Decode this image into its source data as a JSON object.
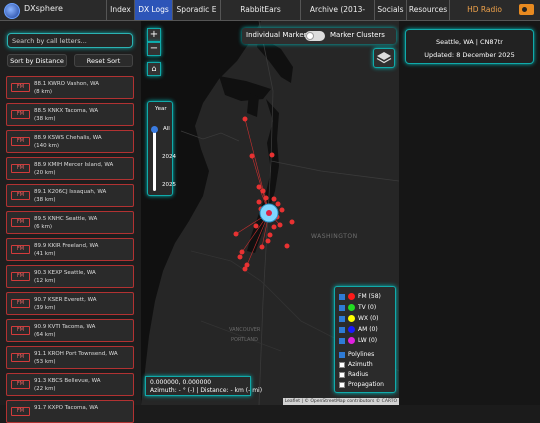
{
  "brand": "DXsphere",
  "nav": [
    {
      "label": "Index"
    },
    {
      "label": "DX Logs"
    },
    {
      "label": "Sporadic E"
    },
    {
      "label": "RabbitEars Autologger"
    },
    {
      "label": "Archive (2013-2023)"
    },
    {
      "label": "Socials"
    },
    {
      "label": "Resources"
    },
    {
      "label": "HD Radio Directory"
    }
  ],
  "search": {
    "placeholder": "Search by call letters..."
  },
  "sort_distance_label": "Sort by Distance",
  "reset_sort_label": "Reset Sort",
  "stations": [
    {
      "badge": "FM",
      "line1": "88.1 KWRO Vashon, WA",
      "line2": "(8 km)"
    },
    {
      "badge": "FM",
      "line1": "88.5 KNKX Tacoma, WA",
      "line2": "(38 km)"
    },
    {
      "badge": "FM",
      "line1": "88.9 KSWS Chehalis, WA",
      "line2": "(140 km)"
    },
    {
      "badge": "FM",
      "line1": "88.9 KMIH Mercer Island, WA",
      "line2": "(20 km)"
    },
    {
      "badge": "FM",
      "line1": "89.1 K206CJ Issaquah, WA",
      "line2": "(38 km)"
    },
    {
      "badge": "FM",
      "line1": "89.5 KNHC Seattle, WA",
      "line2": "(6 km)"
    },
    {
      "badge": "FM",
      "line1": "89.9 KKIR Freeland, WA",
      "line2": "(41 km)"
    },
    {
      "badge": "FM",
      "line1": "90.3 KEXP Seattle, WA",
      "line2": "(12 km)"
    },
    {
      "badge": "FM",
      "line1": "90.7 KSER Everett, WA",
      "line2": "(39 km)"
    },
    {
      "badge": "FM",
      "line1": "90.9 KVTI Tacoma, WA",
      "line2": "(64 km)"
    },
    {
      "badge": "FM",
      "line1": "91.1 KROH Port Townsend, WA",
      "line2": "(53 km)"
    },
    {
      "badge": "FM",
      "line1": "91.3 KBCS Bellevue, WA",
      "line2": "(22 km)"
    },
    {
      "badge": "FM",
      "line1": "91.7 KXPO Tacoma, WA",
      "line2": ""
    }
  ],
  "map": {
    "marker_mode_left": "Individual Markers",
    "marker_mode_right": "Marker Clusters",
    "year_title": "Year",
    "year_all": "All",
    "year_mid": "2024",
    "year_end": "2025",
    "coords_line1": "0.000000, 0.000000",
    "coords_line2": "Azimuth: - ° (-) | Distance: - km (- mi)",
    "label_washington": "WASHINGTON",
    "label_vancouver": "VANCOUVER",
    "label_portland": "PORTLAND",
    "attribution": "Leaflet | © OpenStreetMap contributors © CARTO",
    "zoom_in": "+",
    "zoom_out": "−"
  },
  "legend": [
    {
      "label": "FM (58)",
      "color": "#ff1a1a",
      "checked": true
    },
    {
      "label": "TV (0)",
      "color": "#22dd22",
      "checked": true
    },
    {
      "label": "WX (0)",
      "color": "#ffff00",
      "checked": true
    },
    {
      "label": "AM (0)",
      "color": "#1a1aff",
      "checked": true
    },
    {
      "label": "LW (0)",
      "color": "#e020e0",
      "checked": true
    }
  ],
  "overlays": [
    {
      "label": "Polylines",
      "checked": true
    },
    {
      "label": "Azimuth",
      "checked": false
    },
    {
      "label": "Radius",
      "checked": false
    },
    {
      "label": "Propagation",
      "checked": false
    }
  ],
  "info": {
    "location": "Seattle, WA | CN87tr",
    "updated": "Updated: 8 December 2025"
  }
}
